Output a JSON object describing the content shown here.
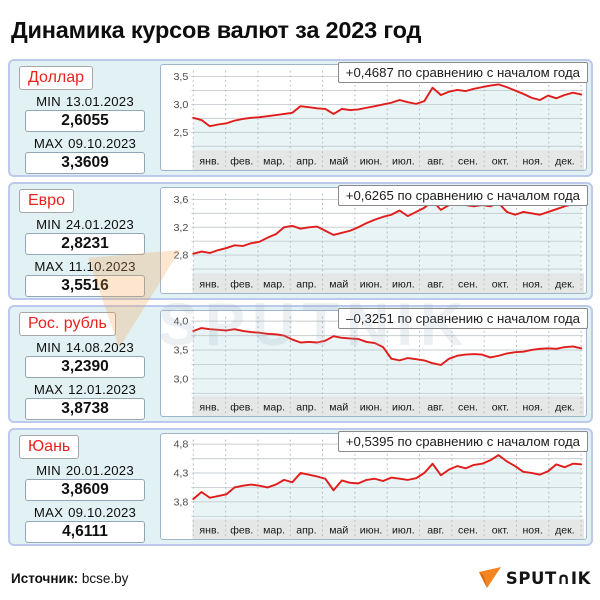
{
  "title": "Динамика курсов валют за 2023 год",
  "watermark": "SPUTNIK",
  "colors": {
    "line": "#e01d1b",
    "accent_red": "#e5231f",
    "panel_bg": "#e2f1f3",
    "panel_border": "#bdc9ec",
    "area_fill": "#e8f4f6",
    "grid": "#c6cdd0",
    "month_strip": "#e5e7e7",
    "logo_orange": "#f5831f"
  },
  "panels": [
    {
      "currency": "Доллар",
      "min_label": "MIN",
      "min_date": "13.01.2023",
      "min_value": "2,6055",
      "max_label": "MAX",
      "max_date": "09.10.2023",
      "max_value": "3,3609"
    },
    {
      "currency": "Евро",
      "min_label": "MIN",
      "min_date": "24.01.2023",
      "min_value": "2,8231",
      "max_label": "MAX",
      "max_date": "11.10.2023",
      "max_value": "3,5516"
    },
    {
      "currency": "Рос. рубль",
      "min_label": "MIN",
      "min_date": "14.08.2023",
      "min_value": "3,2390",
      "max_label": "MAX",
      "max_date": "12.01.2023",
      "max_value": "3,8738"
    },
    {
      "currency": "Юань",
      "min_label": "MIN",
      "min_date": "20.01.2023",
      "min_value": "3,8609",
      "max_label": "MAX",
      "max_date": "09.10.2023",
      "max_value": "4,6111"
    }
  ],
  "chart_data": [
    {
      "type": "line",
      "id": "usd",
      "name": "Доллар",
      "annotation": "+0,4687 по сравнению с началом года",
      "categories": [
        "янв.",
        "фев.",
        "мар.",
        "апр.",
        "май",
        "июн.",
        "июл.",
        "авг.",
        "сен.",
        "окт.",
        "ноя.",
        "дек."
      ],
      "yticks": [
        [
          3.5,
          "3,5"
        ],
        [
          3.0,
          "3,0"
        ],
        [
          2.5,
          "2,5"
        ]
      ],
      "ygrid": [
        3.5,
        3.25,
        3.0,
        2.75,
        2.5,
        2.25
      ],
      "ylim": [
        2.18,
        3.64
      ],
      "values": [
        2.76,
        2.72,
        2.61,
        2.64,
        2.66,
        2.71,
        2.74,
        2.76,
        2.77,
        2.79,
        2.81,
        2.83,
        2.85,
        2.97,
        2.95,
        2.93,
        2.92,
        2.83,
        2.92,
        2.9,
        2.91,
        2.94,
        2.97,
        3.0,
        3.03,
        3.08,
        3.04,
        3.01,
        3.06,
        3.3,
        3.17,
        3.23,
        3.26,
        3.24,
        3.28,
        3.31,
        3.34,
        3.36,
        3.31,
        3.25,
        3.19,
        3.12,
        3.08,
        3.16,
        3.11,
        3.17,
        3.21,
        3.18
      ]
    },
    {
      "type": "line",
      "id": "eur",
      "name": "Евро",
      "annotation": "+0,6265 по сравнению с началом года",
      "categories": [
        "янв.",
        "фев.",
        "мар.",
        "апр.",
        "май",
        "июн.",
        "июл.",
        "авг.",
        "сен.",
        "окт.",
        "ноя.",
        "дек."
      ],
      "yticks": [
        [
          3.6,
          "3,6"
        ],
        [
          3.2,
          "3,2"
        ],
        [
          2.8,
          "2,8"
        ]
      ],
      "ygrid": [
        3.6,
        3.4,
        3.2,
        3.0,
        2.8,
        2.6
      ],
      "ylim": [
        2.54,
        3.71
      ],
      "values": [
        2.82,
        2.85,
        2.83,
        2.87,
        2.9,
        2.94,
        2.93,
        2.97,
        2.99,
        3.05,
        3.1,
        3.2,
        3.22,
        3.18,
        3.2,
        3.21,
        3.15,
        3.09,
        3.12,
        3.15,
        3.2,
        3.26,
        3.31,
        3.35,
        3.38,
        3.44,
        3.36,
        3.42,
        3.48,
        3.58,
        3.45,
        3.52,
        3.55,
        3.52,
        3.5,
        3.52,
        3.5,
        3.55,
        3.42,
        3.38,
        3.42,
        3.4,
        3.38,
        3.42,
        3.46,
        3.5,
        3.53,
        3.55
      ]
    },
    {
      "type": "line",
      "id": "rub",
      "name": "Рос. рубль",
      "annotation": "–0,3251 по сравнению с началом года",
      "categories": [
        "янв.",
        "фев.",
        "мар.",
        "апр.",
        "май",
        "июн.",
        "июл.",
        "авг.",
        "сен.",
        "окт.",
        "ноя.",
        "дек."
      ],
      "yticks": [
        [
          4.0,
          "4,0"
        ],
        [
          3.5,
          "3,5"
        ],
        [
          3.0,
          "3,0"
        ]
      ],
      "ygrid": [
        4.0,
        3.75,
        3.5,
        3.25,
        3.0,
        2.75
      ],
      "ylim": [
        2.7,
        4.11
      ],
      "values": [
        3.83,
        3.88,
        3.86,
        3.85,
        3.84,
        3.86,
        3.83,
        3.81,
        3.8,
        3.78,
        3.77,
        3.75,
        3.68,
        3.63,
        3.64,
        3.63,
        3.66,
        3.74,
        3.71,
        3.7,
        3.69,
        3.64,
        3.62,
        3.55,
        3.35,
        3.32,
        3.36,
        3.34,
        3.32,
        3.27,
        3.24,
        3.35,
        3.4,
        3.42,
        3.43,
        3.42,
        3.37,
        3.4,
        3.44,
        3.46,
        3.47,
        3.5,
        3.52,
        3.53,
        3.52,
        3.55,
        3.56,
        3.53
      ]
    },
    {
      "type": "line",
      "id": "cny",
      "name": "Юань",
      "annotation": "+0,5395 по сравнению с началом года",
      "categories": [
        "янв.",
        "фев.",
        "мар.",
        "апр.",
        "май",
        "июн.",
        "июл.",
        "авг.",
        "сен.",
        "окт.",
        "ноя.",
        "дек."
      ],
      "yticks": [
        [
          4.8,
          "4,8"
        ],
        [
          4.3,
          "4,3"
        ],
        [
          3.8,
          "3,8"
        ]
      ],
      "ygrid": [
        4.8,
        4.55,
        4.3,
        4.05,
        3.8,
        3.55
      ],
      "ylim": [
        3.5,
        4.91
      ],
      "values": [
        3.85,
        3.97,
        3.87,
        3.9,
        3.93,
        4.05,
        4.08,
        4.1,
        4.08,
        4.05,
        4.1,
        4.18,
        4.14,
        4.3,
        4.27,
        4.24,
        4.2,
        4.0,
        4.17,
        4.13,
        4.12,
        4.18,
        4.2,
        4.16,
        4.22,
        4.2,
        4.18,
        4.21,
        4.3,
        4.46,
        4.26,
        4.36,
        4.42,
        4.38,
        4.44,
        4.46,
        4.52,
        4.61,
        4.5,
        4.42,
        4.32,
        4.3,
        4.27,
        4.33,
        4.45,
        4.4,
        4.46,
        4.45
      ]
    }
  ],
  "footer": {
    "source_label": "Источник:",
    "source_value": "bcse.by",
    "logo_text": "SPUT∩IK"
  }
}
